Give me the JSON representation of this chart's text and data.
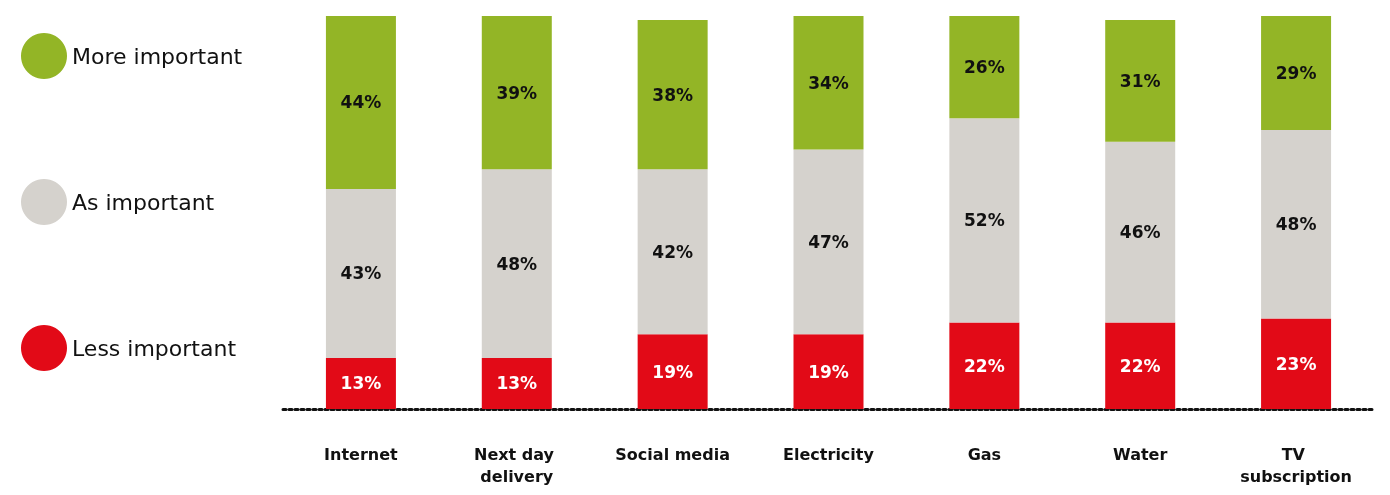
{
  "chart_data": {
    "type": "bar",
    "stacked": true,
    "legend": "left",
    "categories": [
      "Internet",
      "Next day delivery",
      "Social media",
      "Electricity",
      "Gas",
      "Water",
      "TV subscription"
    ],
    "series": [
      {
        "name": "Less important",
        "color": "#e20a17",
        "values": [
          13,
          13,
          19,
          19,
          22,
          22,
          23
        ],
        "value_labels": [
          "13%",
          "13%",
          "19%",
          "19%",
          "22%",
          "22%",
          "23%"
        ]
      },
      {
        "name": "As important",
        "color": "#d5d2cd",
        "values": [
          43,
          48,
          42,
          47,
          52,
          46,
          48
        ],
        "value_labels": [
          "43%",
          "48%",
          "42%",
          "47%",
          "52%",
          "46%",
          "48%"
        ]
      },
      {
        "name": "More important",
        "color": "#93b526",
        "values": [
          44,
          39,
          38,
          34,
          26,
          31,
          29
        ],
        "value_labels": [
          "44%",
          "39%",
          "38%",
          "34%",
          "26%",
          "31%",
          "29%"
        ]
      }
    ]
  }
}
